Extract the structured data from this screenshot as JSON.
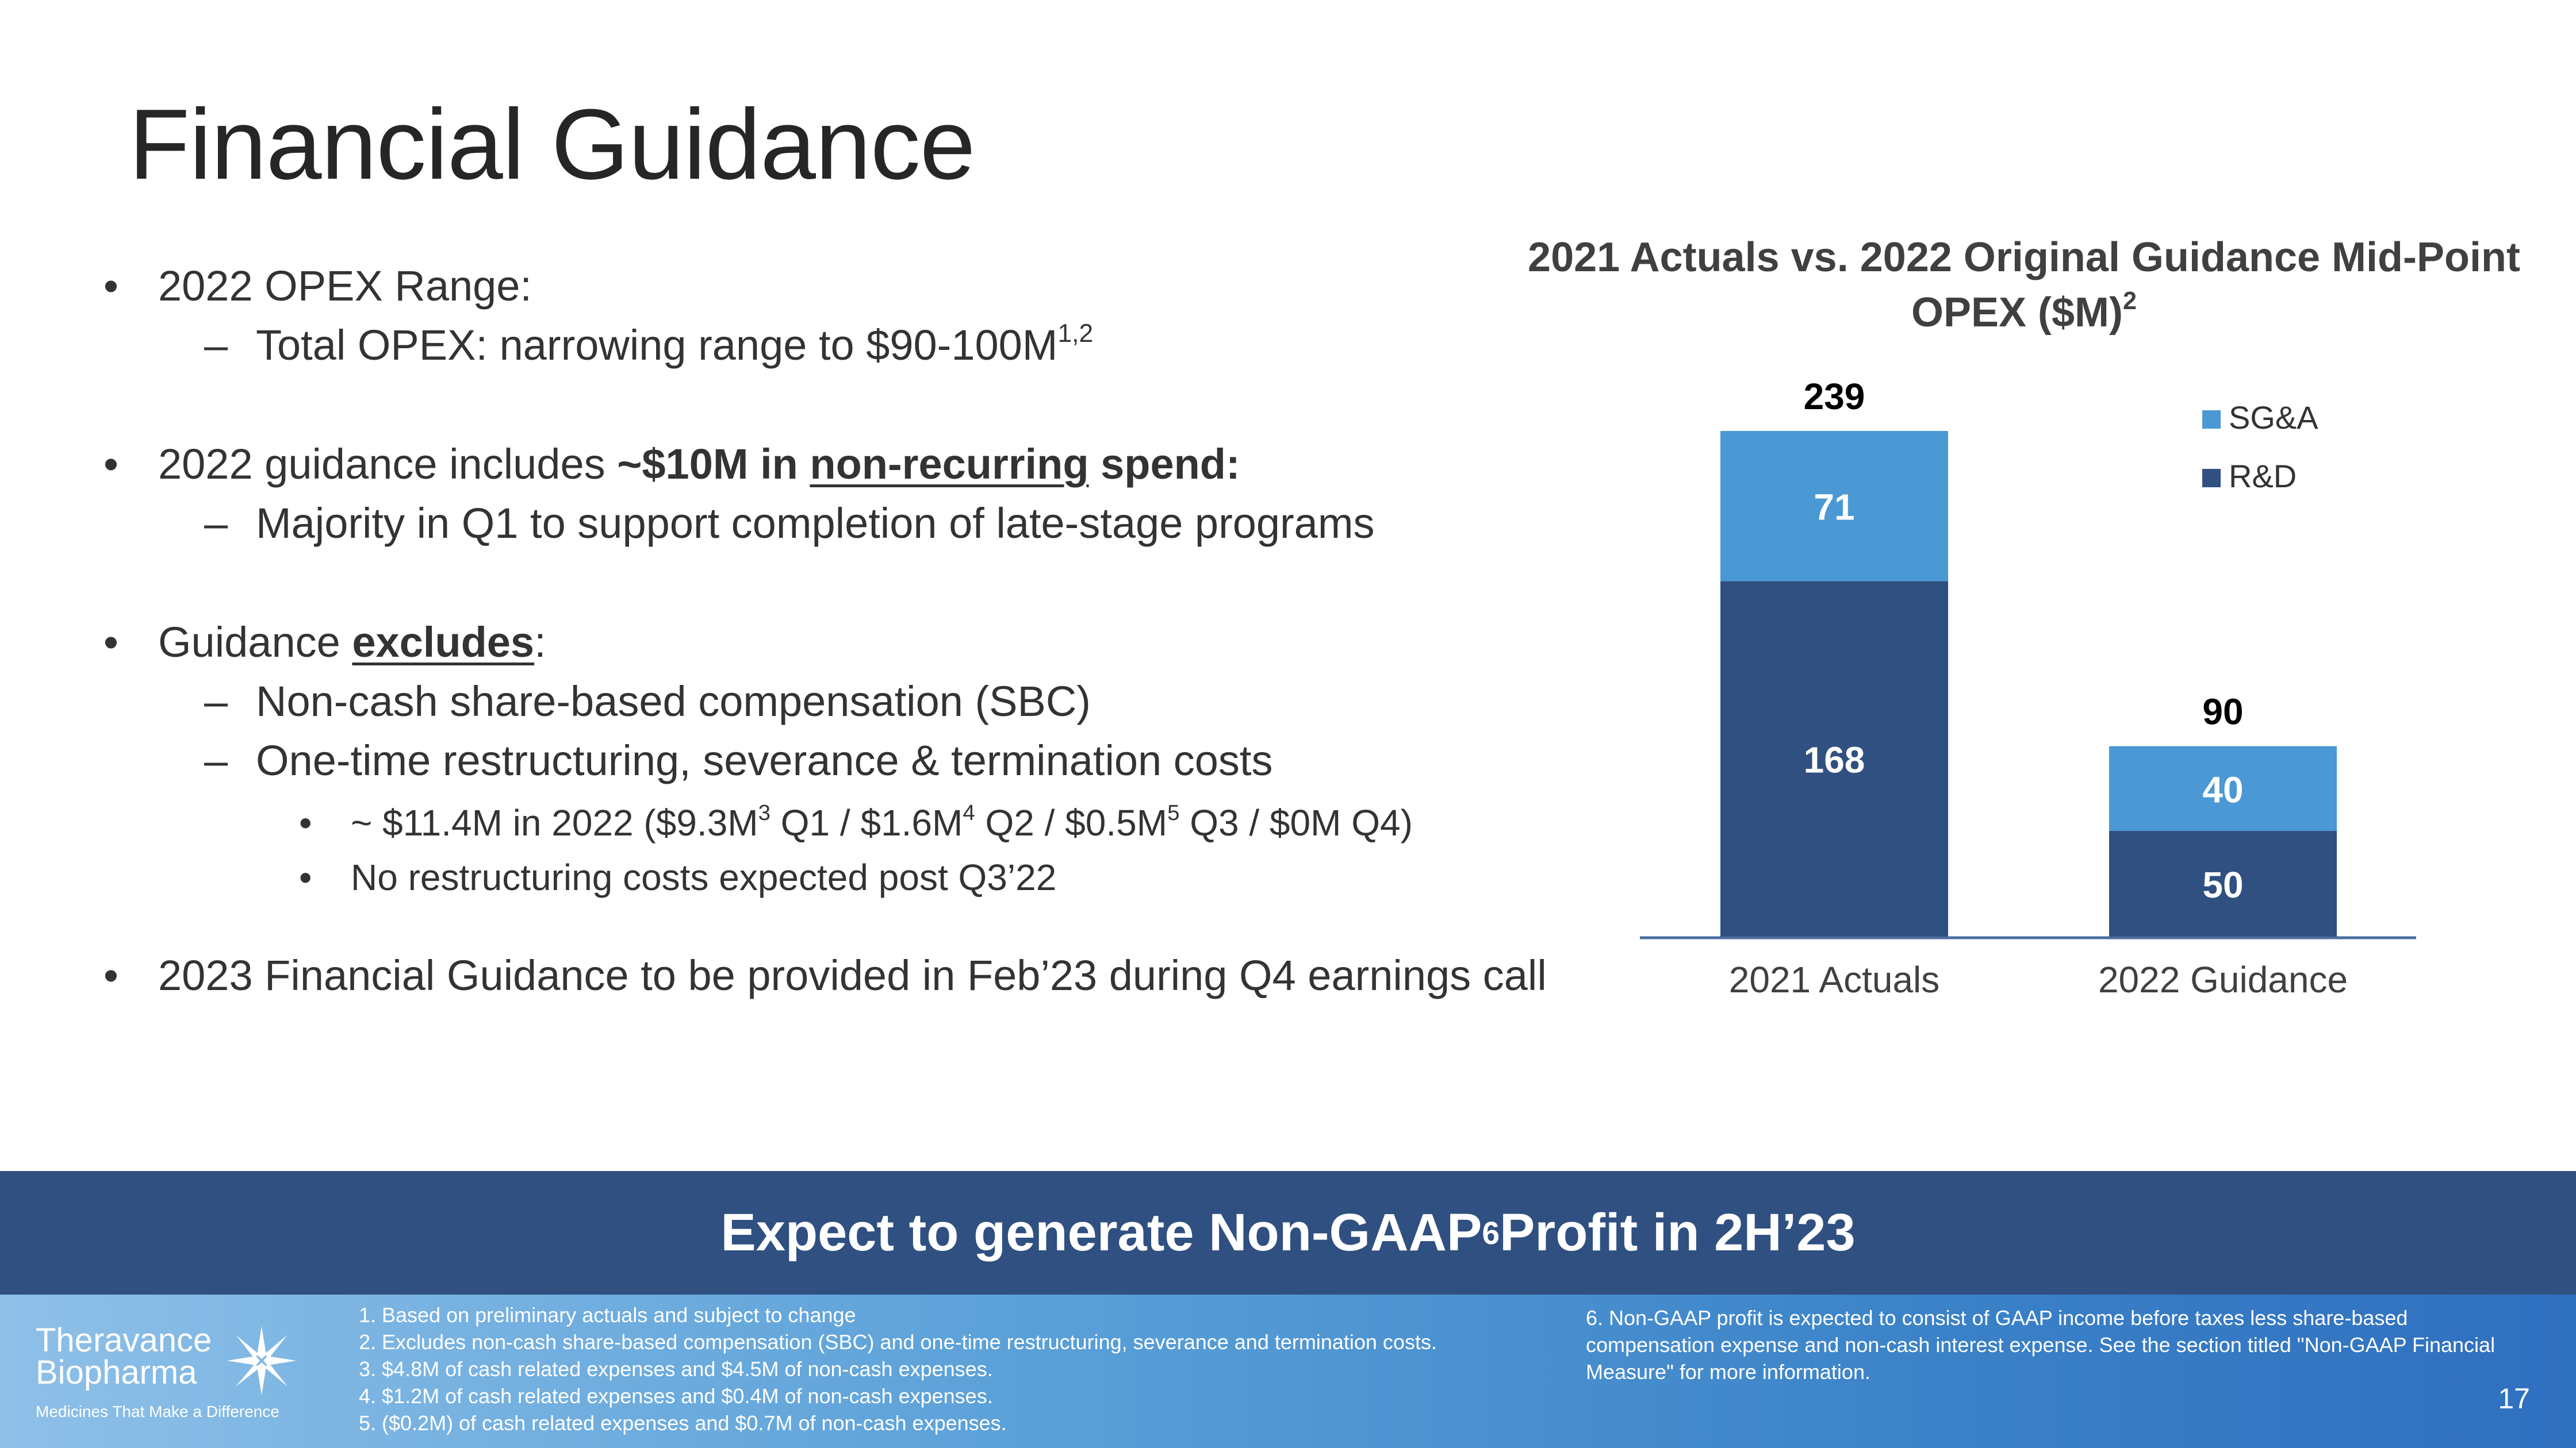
{
  "slide": {
    "title": "Financial Guidance",
    "page_number": "17"
  },
  "bullets": {
    "opex_range": "2022 OPEX Range:",
    "total_opex": "Total OPEX: narrowing range to $90-100M",
    "total_opex_sup": "1,2",
    "guidance_prefix": "2022 guidance includes ",
    "guidance_amount": "~$10M in ",
    "guidance_nonrecurring": "non-recurring",
    "guidance_suffix": " spend:",
    "majority_q1": "Majority in Q1 to support completion of late-stage programs",
    "excludes_prefix": "Guidance ",
    "excludes_word": "excludes",
    "excludes_suffix": ":",
    "non_cash_sbc": "Non-cash share-based compensation (SBC)",
    "one_time_costs": "One-time restructuring, severance & termination costs",
    "sub1_a": "~ $11.4M in 2022 ($9.3M",
    "sub1_sup3": "3",
    "sub1_b": " Q1 / $1.6M",
    "sub1_sup4": "4",
    "sub1_c": " Q2 / $0.5M",
    "sub1_sup5": "5",
    "sub1_d": " Q3 / $0M Q4)",
    "sub2": "No restructuring costs expected post Q3’22",
    "fy2023": "2023 Financial Guidance to be provided in Feb’23 during Q4 earnings call"
  },
  "banner": {
    "text_a": "Expect to generate Non-GAAP",
    "sup": "6",
    "text_b": " Profit in 2H’23"
  },
  "footer": {
    "logo_line1": "Theravance",
    "logo_line2": "Biopharma",
    "logo_tagline": "Medicines That Make a Difference",
    "notes": [
      "1. Based on preliminary actuals and subject to change",
      "2. Excludes non-cash share-based compensation (SBC) and one-time restructuring, severance and termination costs.",
      "3. $4.8M of cash related expenses and $4.5M of non-cash expenses.",
      "4. $1.2M of cash related expenses and $0.4M of non-cash expenses.",
      "5. ($0.2M) of cash related expenses and $0.7M of non-cash expenses."
    ],
    "note6": "6. Non-GAAP profit is expected to consist of GAAP income before taxes less share-based compensation expense and non-cash interest expense. See the section titled \"Non-GAAP Financial Measure\" for more information."
  },
  "colors": {
    "rd": "#2f5080",
    "sga": "#4a98d4",
    "banner": "#2f5080"
  },
  "chart_data": {
    "type": "bar",
    "stacked": true,
    "title": "2021 Actuals vs. 2022 Original Guidance Mid-Point OPEX ($M)",
    "title_line1": "2021 Actuals vs. 2022 Original Guidance Mid-Point",
    "title_line2": "OPEX ($M)",
    "title_sup": "2",
    "categories": [
      "2021 Actuals",
      "2022 Guidance"
    ],
    "series": [
      {
        "name": "R&D",
        "values": [
          168,
          50
        ],
        "color": "#2f5080"
      },
      {
        "name": "SG&A",
        "values": [
          71,
          40
        ],
        "color": "#4a98d4"
      }
    ],
    "totals": [
      239,
      90
    ],
    "legend": [
      "SG&A",
      "R&D"
    ],
    "legend_position": "top-right",
    "ylim": [
      0,
      239
    ],
    "xlabel": "",
    "ylabel": ""
  }
}
